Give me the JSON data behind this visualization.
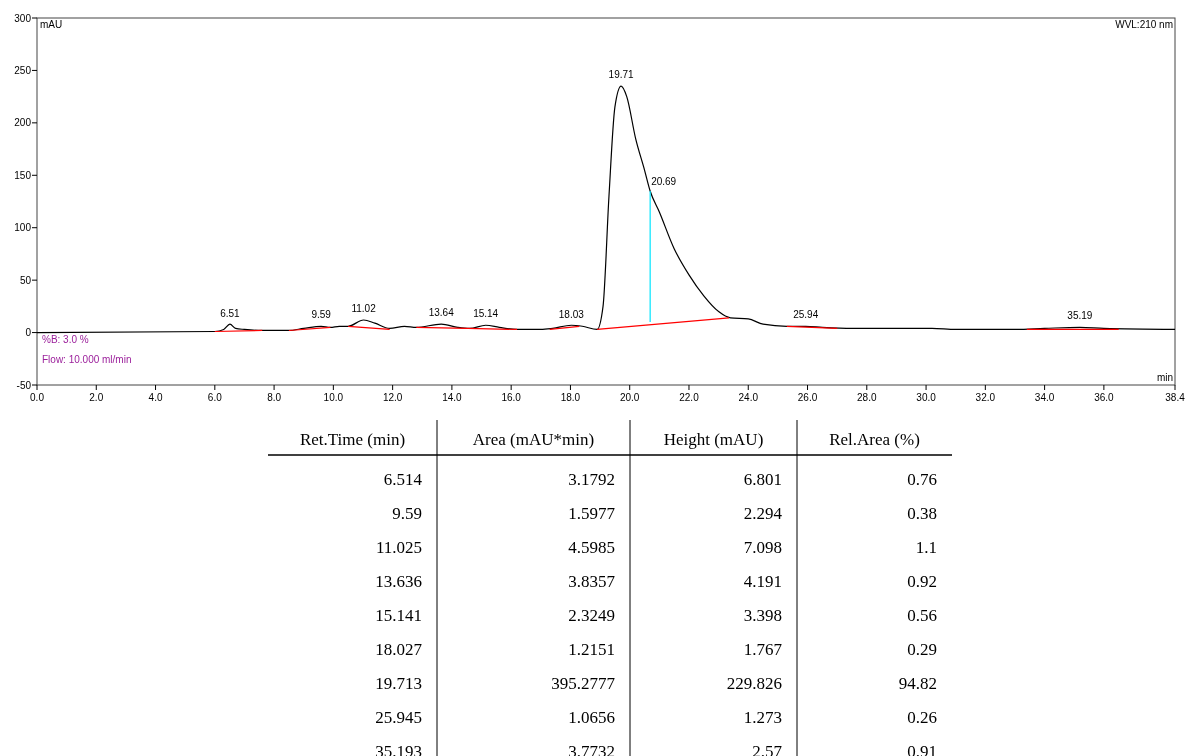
{
  "chart_data": [
    {
      "type": "line",
      "xlabel": "min",
      "ylabel": "mAU",
      "xlim": [
        0,
        38.4
      ],
      "ylim": [
        -50,
        300
      ],
      "xticks": [
        {
          "value": 0,
          "label": "0.0"
        },
        {
          "value": 2,
          "label": "2.0"
        },
        {
          "value": 4,
          "label": "4.0"
        },
        {
          "value": 6,
          "label": "6.0"
        },
        {
          "value": 8,
          "label": "8.0"
        },
        {
          "value": 10,
          "label": "10.0"
        },
        {
          "value": 12,
          "label": "12.0"
        },
        {
          "value": 14,
          "label": "14.0"
        },
        {
          "value": 16,
          "label": "16.0"
        },
        {
          "value": 18,
          "label": "18.0"
        },
        {
          "value": 20,
          "label": "20.0"
        },
        {
          "value": 22,
          "label": "22.0"
        },
        {
          "value": 24,
          "label": "24.0"
        },
        {
          "value": 26,
          "label": "26.0"
        },
        {
          "value": 28,
          "label": "28.0"
        },
        {
          "value": 30,
          "label": "30.0"
        },
        {
          "value": 32,
          "label": "32.0"
        },
        {
          "value": 34,
          "label": "34.0"
        },
        {
          "value": 36,
          "label": "36.0"
        },
        38.4
      ],
      "yticks": [
        -50,
        0,
        50,
        100,
        150,
        200,
        250,
        300
      ],
      "grid": false,
      "marker": "none",
      "line_style": "solid",
      "series": [
        {
          "color": "#000000",
          "x": [
            0,
            6.0,
            6.3,
            6.51,
            6.7,
            7.0,
            7.6,
            8.5,
            9.0,
            9.59,
            9.9,
            10.2,
            10.5,
            11.02,
            11.4,
            11.9,
            12.4,
            12.8,
            13.64,
            14.2,
            14.6,
            15.14,
            15.6,
            16.2,
            17.0,
            17.4,
            18.03,
            18.4,
            18.9,
            19.1,
            19.3,
            19.5,
            19.71,
            19.9,
            20.2,
            20.5,
            20.69,
            21.0,
            21.5,
            22.0,
            22.5,
            23.0,
            23.4,
            24.0,
            24.5,
            25.3,
            25.94,
            26.5,
            27.5,
            29.0,
            30.2,
            31.0,
            33.0,
            34.0,
            35.19,
            36.0,
            38.4
          ],
          "values": [
            0,
            1,
            3,
            8,
            4,
            3,
            2,
            2,
            4,
            6,
            5,
            6,
            6,
            12,
            9,
            4,
            6,
            5,
            8,
            5,
            4,
            7,
            5,
            3,
            3,
            4,
            7,
            6,
            3,
            25,
            130,
            215,
            235,
            225,
            185,
            155,
            135,
            115,
            80,
            55,
            35,
            20,
            14,
            13,
            8,
            6,
            6,
            5,
            4,
            4,
            4,
            3,
            3,
            4,
            5,
            4,
            3
          ]
        },
        {
          "color": "#ff0000",
          "x": [
            6.0,
            7.6,
            7.7,
            8.5,
            9.9,
            10.0,
            10.5,
            11.9,
            12.0,
            12.8,
            14.5,
            16.2,
            16.3,
            17.3,
            18.3,
            18.4,
            18.9,
            23.35,
            23.4,
            25.3,
            27.0,
            27.1,
            33.4,
            36.5
          ],
          "values": [
            1,
            2,
            null,
            2,
            5,
            null,
            6,
            3,
            null,
            5,
            4,
            3,
            null,
            3,
            6,
            null,
            3,
            14,
            null,
            6,
            4,
            null,
            3,
            3
          ]
        },
        {
          "color": "#00e5ff",
          "x": [
            20.69,
            20.69
          ],
          "values": [
            10,
            135
          ]
        }
      ],
      "annotations": [
        "WVL:210 nm",
        "%B: 3.0 %",
        "Flow: 10.000 ml/min",
        {
          "text": "6.51",
          "x": 6.51,
          "y": 7.5
        },
        {
          "text": "9.59",
          "x": 9.59,
          "y": 6
        },
        {
          "text": "11.02",
          "x": 11.02,
          "y": 12
        },
        {
          "text": "13.64",
          "x": 13.64,
          "y": 8
        },
        {
          "text": "15.14",
          "x": 15.14,
          "y": 7
        },
        {
          "text": "18.03",
          "x": 18.03,
          "y": 6.5
        },
        {
          "text": "19.71",
          "x": 19.71,
          "y": 235
        },
        {
          "text": "20.69",
          "x": 20.69,
          "y": 135
        },
        {
          "text": "25.94",
          "x": 25.94,
          "y": 6
        },
        {
          "text": "35.19",
          "x": 35.19,
          "y": 5
        }
      ]
    },
    {
      "type": "other",
      "categories": [
        "Ret.Time (min)",
        "Area (mAU*min)",
        "Height (mAU)",
        "Rel.Area (%)"
      ],
      "cell_labels": [
        [
          "6.514",
          "3.1792",
          "6.801",
          "0.76"
        ],
        [
          "9.59",
          "1.5977",
          "2.294",
          "0.38"
        ],
        [
          "11.025",
          "4.5985",
          "7.098",
          "1.1"
        ],
        [
          "13.636",
          "3.8357",
          "4.191",
          "0.92"
        ],
        [
          "15.141",
          "2.3249",
          "3.398",
          "0.56"
        ],
        [
          "18.027",
          "1.2151",
          "1.767",
          "0.29"
        ],
        [
          "19.713",
          "395.2777",
          "229.826",
          "94.82"
        ],
        [
          "25.945",
          "1.0656",
          "1.273",
          "0.26"
        ],
        [
          "35.193",
          "3.7732",
          "2.57",
          "0.91"
        ]
      ]
    }
  ]
}
